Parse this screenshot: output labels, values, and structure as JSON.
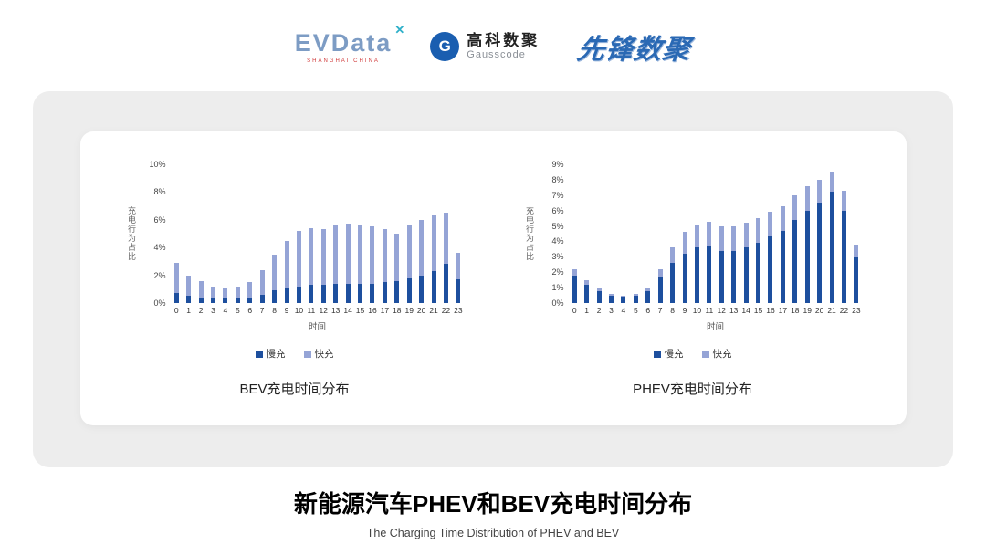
{
  "header": {
    "evdata": {
      "text": "EVData",
      "mark": "✕",
      "sub": "SHANGHAI CHINA"
    },
    "gausscode": {
      "icon_letter": "G",
      "cn": "高科数聚",
      "en": "Gausscode"
    },
    "pioneer": {
      "text": "先锋数聚"
    }
  },
  "colors": {
    "slow": "#1d4f9e",
    "fast": "#95a4d6"
  },
  "chart_data": [
    {
      "type": "bar",
      "stacked": true,
      "title": "BEV充电时间分布",
      "xlabel": "时间",
      "ylabel": "充电行为占比",
      "ylim": [
        0,
        10
      ],
      "ytick": 2,
      "ytick_suffix": "%",
      "grid": false,
      "legend_position": "bottom",
      "categories": [
        "0",
        "1",
        "2",
        "3",
        "4",
        "5",
        "6",
        "7",
        "8",
        "9",
        "10",
        "11",
        "12",
        "13",
        "14",
        "15",
        "16",
        "17",
        "18",
        "19",
        "20",
        "21",
        "22",
        "23"
      ],
      "series": [
        {
          "name": "慢充",
          "values": [
            0.7,
            0.5,
            0.4,
            0.3,
            0.3,
            0.3,
            0.4,
            0.6,
            0.9,
            1.1,
            1.2,
            1.3,
            1.3,
            1.4,
            1.4,
            1.4,
            1.4,
            1.5,
            1.6,
            1.8,
            2.0,
            2.3,
            2.8,
            1.7
          ]
        },
        {
          "name": "快充",
          "values": [
            2.2,
            1.5,
            1.2,
            0.9,
            0.8,
            0.9,
            1.1,
            1.8,
            2.6,
            3.4,
            4.0,
            4.1,
            4.0,
            4.2,
            4.3,
            4.2,
            4.1,
            3.8,
            3.4,
            3.8,
            4.0,
            4.0,
            3.7,
            1.9
          ]
        }
      ]
    },
    {
      "type": "bar",
      "stacked": true,
      "title": "PHEV充电时间分布",
      "xlabel": "时间",
      "ylabel": "充电行为占比",
      "ylim": [
        0,
        9
      ],
      "ytick": 1,
      "ytick_suffix": "%",
      "grid": false,
      "legend_position": "bottom",
      "categories": [
        "0",
        "1",
        "2",
        "3",
        "4",
        "5",
        "6",
        "7",
        "8",
        "9",
        "10",
        "11",
        "12",
        "13",
        "14",
        "15",
        "16",
        "17",
        "18",
        "19",
        "20",
        "21",
        "22",
        "23"
      ],
      "series": [
        {
          "name": "慢充",
          "values": [
            1.8,
            1.2,
            0.8,
            0.5,
            0.4,
            0.5,
            0.8,
            1.7,
            2.6,
            3.2,
            3.6,
            3.7,
            3.4,
            3.4,
            3.6,
            3.9,
            4.3,
            4.7,
            5.4,
            6.0,
            6.5,
            7.2,
            6.0,
            3.0
          ]
        },
        {
          "name": "快充",
          "values": [
            0.4,
            0.3,
            0.2,
            0.1,
            0.1,
            0.1,
            0.2,
            0.5,
            1.0,
            1.4,
            1.5,
            1.6,
            1.6,
            1.6,
            1.6,
            1.6,
            1.6,
            1.6,
            1.6,
            1.6,
            1.5,
            1.3,
            1.3,
            0.8
          ]
        }
      ]
    }
  ],
  "footer": {
    "title": "新能源汽车PHEV和BEV充电时间分布",
    "subtitle": "The Charging Time Distribution of PHEV and BEV"
  }
}
